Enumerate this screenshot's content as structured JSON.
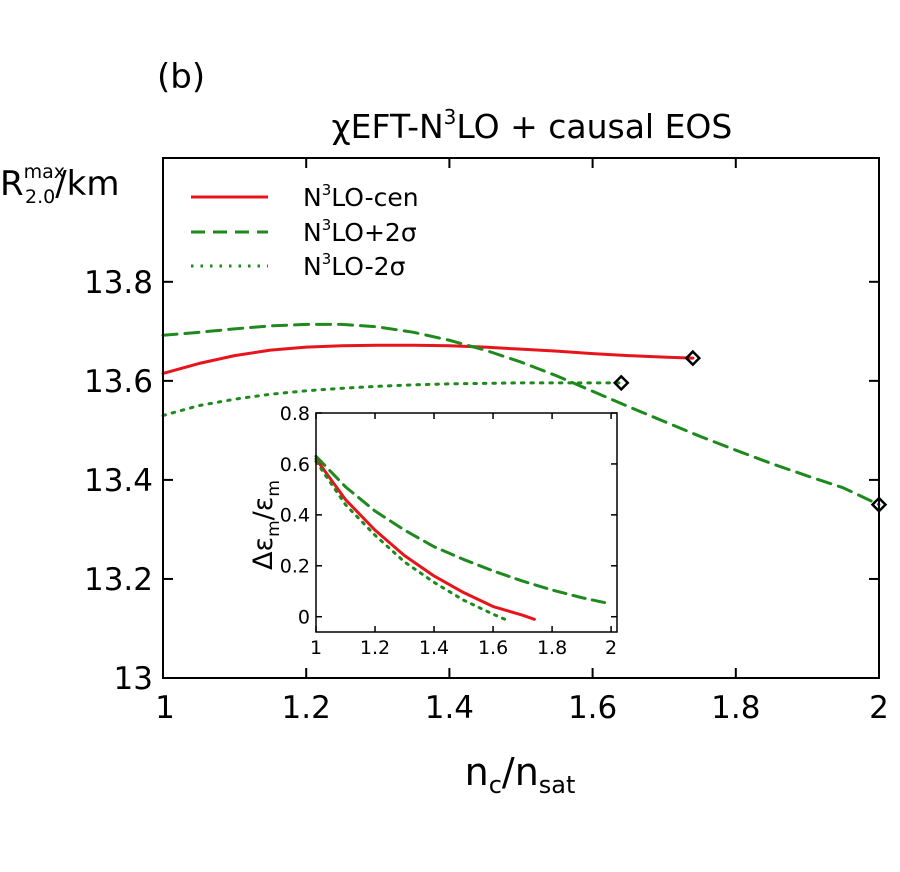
{
  "panel_label": "(b)",
  "title": {
    "pre": "χEFT-N",
    "sup": "3",
    "post": "LO + causal EOS"
  },
  "colors": {
    "cen": "#e8141c",
    "plus": "#1e8a1e",
    "minus": "#1e8a1e",
    "axis": "#000000",
    "marker": "#000000"
  },
  "chart_data": [
    {
      "type": "line",
      "xlabel": {
        "base": "n",
        "sub1": "c",
        "mid": "/n",
        "sub2": "sat"
      },
      "ylabel": {
        "base": "R",
        "sub": "2.0",
        "sup": "max",
        "post": "/km"
      },
      "xlim": [
        1,
        2
      ],
      "ylim": [
        13,
        14.05
      ],
      "xticks": [
        1,
        1.2,
        1.4,
        1.6,
        1.8,
        2
      ],
      "yticks": [
        13,
        13.2,
        13.4,
        13.6,
        13.8
      ],
      "xtick_labels": [
        "1",
        "1.2",
        "1.4",
        "1.6",
        "1.8",
        "2"
      ],
      "ytick_labels": [
        "13",
        "13.2",
        "13.4",
        "13.6",
        "13.8"
      ],
      "grid": false,
      "legend_position": "top-left",
      "series": [
        {
          "key": "cen",
          "legend": {
            "pre": "N",
            "sup": "3",
            "post": "LO-cen"
          },
          "dash": "solid",
          "endpoint_marker": "diamond",
          "x": [
            1.0,
            1.05,
            1.1,
            1.15,
            1.2,
            1.25,
            1.3,
            1.35,
            1.4,
            1.45,
            1.5,
            1.55,
            1.6,
            1.65,
            1.7,
            1.74
          ],
          "y": [
            13.615,
            13.635,
            13.651,
            13.662,
            13.668,
            13.671,
            13.672,
            13.672,
            13.671,
            13.668,
            13.664,
            13.66,
            13.655,
            13.651,
            13.648,
            13.646
          ]
        },
        {
          "key": "plus",
          "legend": {
            "pre": "N",
            "sup": "3",
            "post": "LO+2σ"
          },
          "dash": "dashed",
          "endpoint_marker": "diamond",
          "x": [
            1.0,
            1.05,
            1.1,
            1.15,
            1.2,
            1.25,
            1.3,
            1.35,
            1.4,
            1.45,
            1.5,
            1.55,
            1.6,
            1.65,
            1.7,
            1.75,
            1.8,
            1.85,
            1.9,
            1.95,
            2.0
          ],
          "y": [
            13.692,
            13.698,
            13.705,
            13.711,
            13.714,
            13.714,
            13.709,
            13.698,
            13.682,
            13.662,
            13.638,
            13.61,
            13.579,
            13.548,
            13.518,
            13.488,
            13.46,
            13.433,
            13.408,
            13.384,
            13.35
          ]
        },
        {
          "key": "minus",
          "legend": {
            "pre": "N",
            "sup": "3",
            "post": "LO-2σ"
          },
          "dash": "dotted",
          "endpoint_marker": "diamond",
          "x": [
            1.0,
            1.05,
            1.1,
            1.15,
            1.2,
            1.25,
            1.3,
            1.35,
            1.4,
            1.45,
            1.5,
            1.55,
            1.6,
            1.64
          ],
          "y": [
            13.53,
            13.55,
            13.563,
            13.573,
            13.58,
            13.585,
            13.589,
            13.592,
            13.594,
            13.595,
            13.596,
            13.596,
            13.596,
            13.596
          ]
        }
      ]
    },
    {
      "type": "line",
      "role": "inset",
      "ylabel": {
        "pre": "Δε",
        "sub1": "m",
        "mid": "/ε",
        "sub2": "m"
      },
      "xlim": [
        1,
        2.02
      ],
      "ylim": [
        -0.06,
        0.8
      ],
      "xticks": [
        1,
        1.2,
        1.4,
        1.6,
        1.8,
        2
      ],
      "yticks": [
        0,
        0.2,
        0.4,
        0.6,
        0.8
      ],
      "xtick_labels": [
        "1",
        "1.2",
        "1.4",
        "1.6",
        "1.8",
        "2"
      ],
      "ytick_labels": [
        "0",
        "0.2",
        "0.4",
        "0.6",
        "0.8"
      ],
      "grid": false,
      "series": [
        {
          "key": "cen",
          "dash": "solid",
          "x": [
            1.0,
            1.1,
            1.2,
            1.3,
            1.4,
            1.5,
            1.6,
            1.7,
            1.74
          ],
          "y": [
            0.62,
            0.46,
            0.34,
            0.24,
            0.16,
            0.095,
            0.04,
            0.006,
            -0.01
          ]
        },
        {
          "key": "plus",
          "dash": "dashed",
          "x": [
            1.0,
            1.1,
            1.2,
            1.3,
            1.4,
            1.5,
            1.6,
            1.7,
            1.8,
            1.9,
            2.0
          ],
          "y": [
            0.63,
            0.51,
            0.415,
            0.34,
            0.275,
            0.225,
            0.18,
            0.14,
            0.105,
            0.075,
            0.05
          ]
        },
        {
          "key": "minus",
          "dash": "dotted",
          "x": [
            1.0,
            1.1,
            1.2,
            1.3,
            1.4,
            1.5,
            1.6,
            1.64
          ],
          "y": [
            0.61,
            0.44,
            0.32,
            0.215,
            0.135,
            0.065,
            0.01,
            -0.01
          ]
        }
      ]
    }
  ]
}
